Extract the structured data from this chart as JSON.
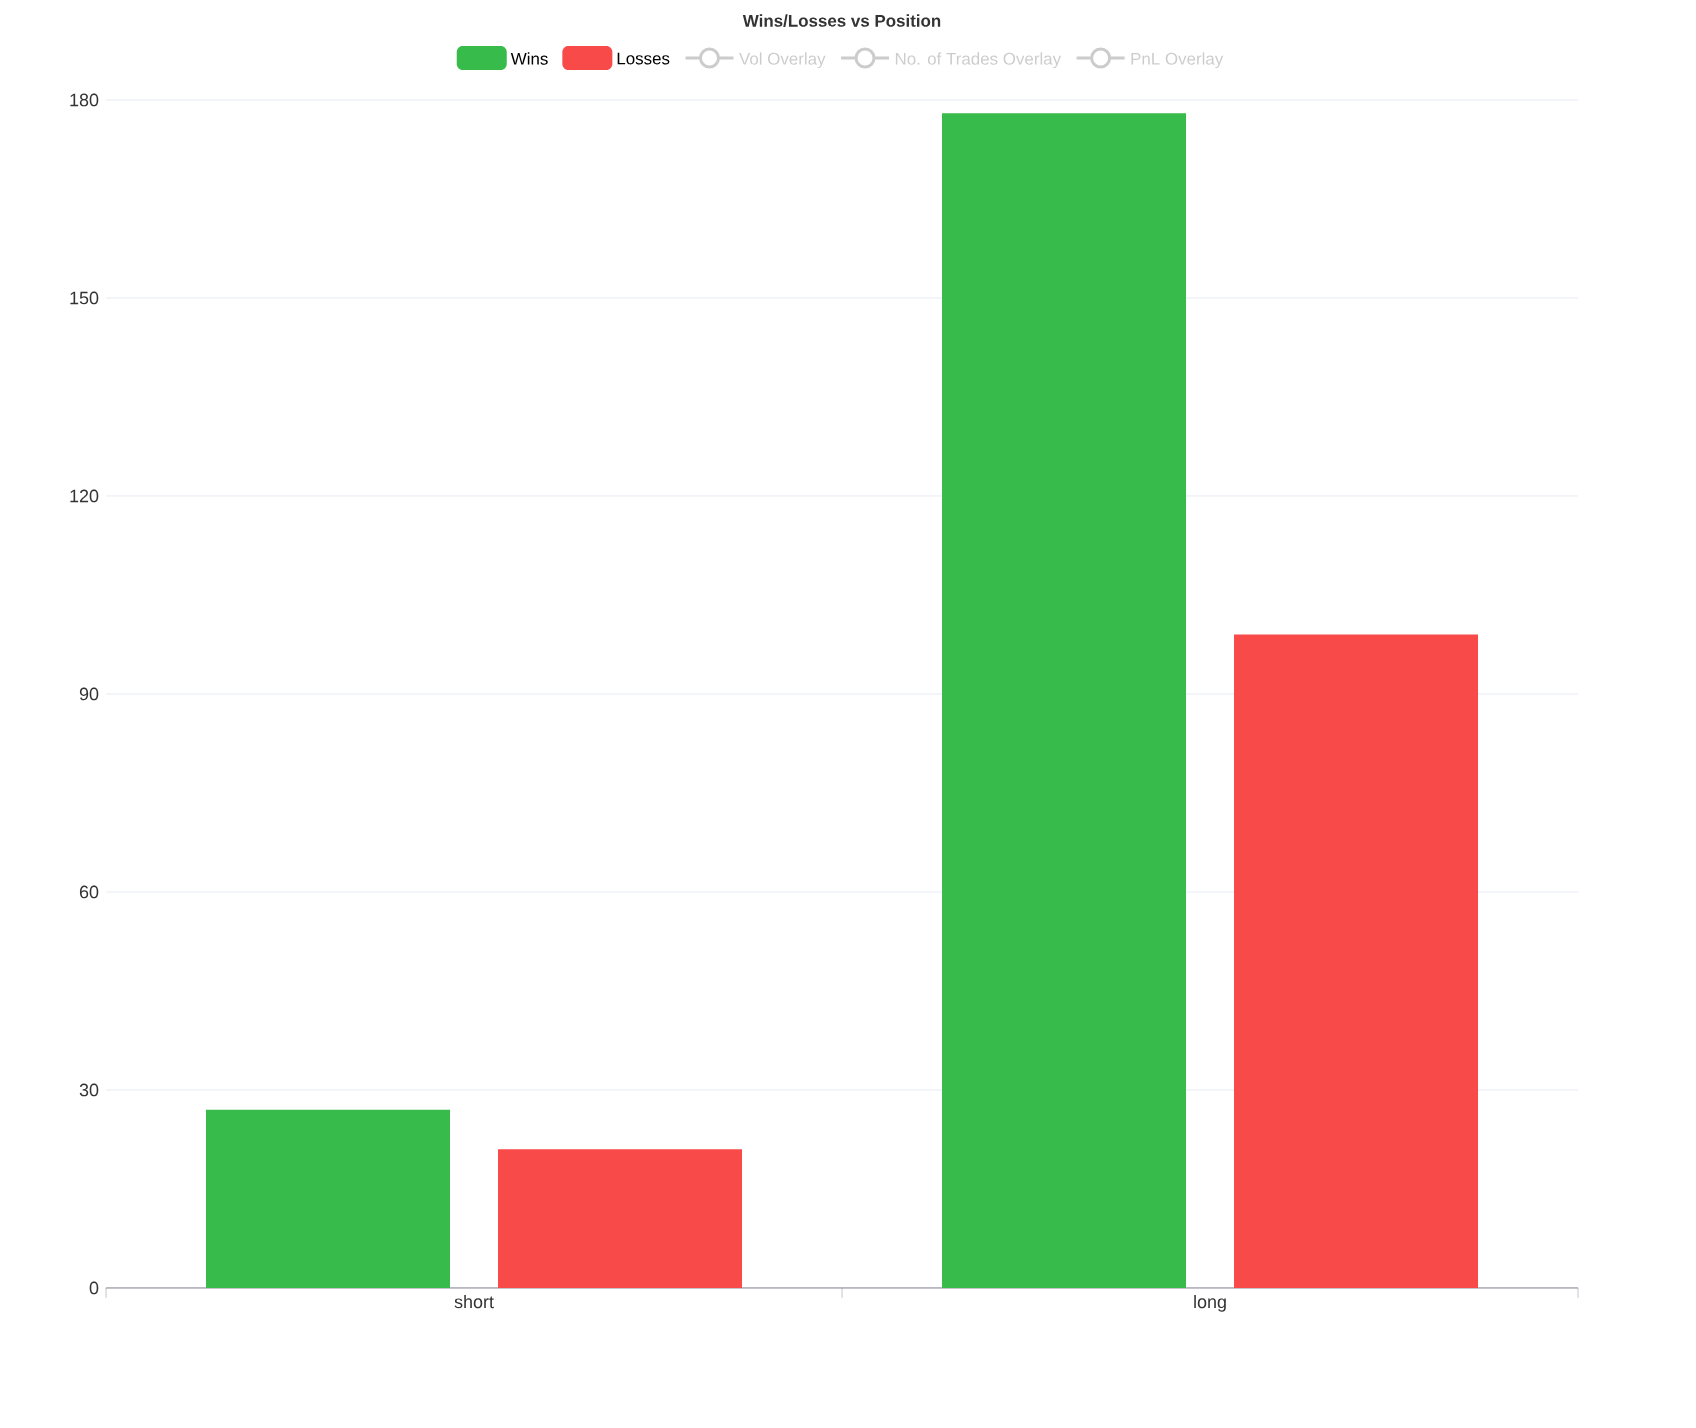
{
  "chart_data": {
    "type": "bar",
    "title": "Wins/Losses vs Position",
    "categories": [
      "short",
      "long"
    ],
    "series": [
      {
        "name": "Wins",
        "color": "#37bb4a",
        "values": [
          27,
          178
        ]
      },
      {
        "name": "Losses",
        "color": "#f94a4a",
        "values": [
          21,
          99
        ]
      },
      {
        "name": "Vol Overlay",
        "type": "line",
        "color": "#cccccc",
        "values": [
          null,
          null
        ]
      },
      {
        "name": "No. of Trades Overlay",
        "type": "line",
        "color": "#cccccc",
        "values": [
          null,
          null
        ]
      },
      {
        "name": "PnL Overlay",
        "type": "line",
        "color": "#cccccc",
        "values": [
          null,
          null
        ]
      }
    ],
    "ylim": [
      0,
      180
    ],
    "yticks": [
      0,
      30,
      60,
      90,
      120,
      150,
      180
    ],
    "grid": "y",
    "legend": "top",
    "marker": "circle"
  }
}
